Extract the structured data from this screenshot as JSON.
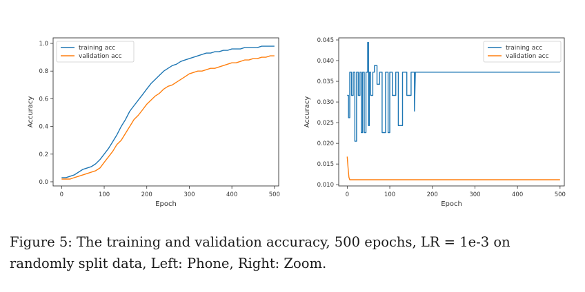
{
  "caption": {
    "line1": "Figure 5:  The training and validation accuracy, 500 epochs, LR = 1e-3 on",
    "line2": "randomly split data, Left: Phone, Right: Zoom."
  },
  "colors": {
    "training": "#1f77b4",
    "validation": "#ff7f0e",
    "axis": "#333333"
  },
  "chart_data": [
    {
      "type": "line",
      "title": "",
      "xlabel": "Epoch",
      "ylabel": "Accuracy",
      "xlim": [
        -20,
        510
      ],
      "ylim": [
        -0.03,
        1.04
      ],
      "xticks": [
        0,
        100,
        200,
        300,
        400,
        500
      ],
      "yticks": [
        0.0,
        0.2,
        0.4,
        0.6,
        0.8,
        1.0
      ],
      "ytick_labels": [
        "0.0",
        "0.2",
        "0.4",
        "0.6",
        "0.8",
        "1.0"
      ],
      "legend_position": "top-left",
      "grid": false,
      "series": [
        {
          "name": "training acc",
          "x": [
            0,
            10,
            20,
            30,
            40,
            50,
            60,
            70,
            80,
            90,
            100,
            110,
            120,
            130,
            140,
            150,
            160,
            170,
            180,
            190,
            200,
            210,
            220,
            230,
            240,
            250,
            260,
            270,
            280,
            290,
            300,
            310,
            320,
            330,
            340,
            350,
            360,
            370,
            380,
            390,
            400,
            410,
            420,
            430,
            440,
            450,
            460,
            470,
            480,
            490,
            500
          ],
          "values": [
            0.03,
            0.03,
            0.04,
            0.05,
            0.07,
            0.09,
            0.1,
            0.11,
            0.13,
            0.16,
            0.2,
            0.24,
            0.29,
            0.34,
            0.4,
            0.45,
            0.51,
            0.55,
            0.59,
            0.63,
            0.67,
            0.71,
            0.74,
            0.77,
            0.8,
            0.82,
            0.84,
            0.85,
            0.87,
            0.88,
            0.89,
            0.9,
            0.91,
            0.92,
            0.93,
            0.93,
            0.94,
            0.94,
            0.95,
            0.95,
            0.96,
            0.96,
            0.96,
            0.97,
            0.97,
            0.97,
            0.97,
            0.98,
            0.98,
            0.98,
            0.98
          ]
        },
        {
          "name": "validation acc",
          "x": [
            0,
            10,
            20,
            30,
            40,
            50,
            60,
            70,
            80,
            90,
            100,
            110,
            120,
            130,
            140,
            150,
            160,
            170,
            180,
            190,
            200,
            210,
            220,
            230,
            240,
            250,
            260,
            270,
            280,
            290,
            300,
            310,
            320,
            330,
            340,
            350,
            360,
            370,
            380,
            390,
            400,
            410,
            420,
            430,
            440,
            450,
            460,
            470,
            480,
            490,
            500
          ],
          "values": [
            0.02,
            0.02,
            0.02,
            0.03,
            0.04,
            0.05,
            0.06,
            0.07,
            0.08,
            0.1,
            0.14,
            0.18,
            0.22,
            0.27,
            0.3,
            0.35,
            0.4,
            0.45,
            0.48,
            0.52,
            0.56,
            0.59,
            0.62,
            0.64,
            0.67,
            0.69,
            0.7,
            0.72,
            0.74,
            0.76,
            0.78,
            0.79,
            0.8,
            0.8,
            0.81,
            0.82,
            0.82,
            0.83,
            0.84,
            0.85,
            0.86,
            0.86,
            0.87,
            0.88,
            0.88,
            0.89,
            0.89,
            0.9,
            0.9,
            0.91,
            0.91
          ]
        }
      ]
    },
    {
      "type": "line",
      "title": "",
      "xlabel": "Epoch",
      "ylabel": "Accuracy",
      "xlim": [
        -20,
        510
      ],
      "ylim": [
        0.0097,
        0.0455
      ],
      "xticks": [
        0,
        100,
        200,
        300,
        400,
        500
      ],
      "yticks": [
        0.01,
        0.015,
        0.02,
        0.025,
        0.03,
        0.035,
        0.04,
        0.045
      ],
      "ytick_labels": [
        "0.010",
        "0.015",
        "0.020",
        "0.025",
        "0.030",
        "0.035",
        "0.040",
        "0.045"
      ],
      "legend_position": "top-right",
      "grid": false,
      "series": [
        {
          "name": "training acc",
          "x": [
            0,
            3,
            3,
            6,
            6,
            10,
            10,
            14,
            14,
            18,
            18,
            22,
            22,
            26,
            26,
            30,
            30,
            33,
            33,
            36,
            36,
            40,
            40,
            44,
            44,
            48,
            48,
            50,
            50,
            52,
            52,
            55,
            55,
            60,
            60,
            64,
            64,
            70,
            70,
            76,
            76,
            82,
            82,
            90,
            90,
            96,
            96,
            100,
            100,
            106,
            106,
            114,
            114,
            120,
            120,
            130,
            130,
            140,
            140,
            150,
            150,
            158,
            158,
            160,
            500
          ],
          "values": [
            0.0316,
            0.0316,
            0.0262,
            0.0262,
            0.0372,
            0.0372,
            0.0316,
            0.0316,
            0.0372,
            0.0372,
            0.0205,
            0.0205,
            0.0372,
            0.0372,
            0.0316,
            0.0316,
            0.0372,
            0.0372,
            0.0226,
            0.0226,
            0.0372,
            0.0372,
            0.0226,
            0.0226,
            0.0372,
            0.0372,
            0.0444,
            0.0444,
            0.0243,
            0.0243,
            0.0372,
            0.0372,
            0.0316,
            0.0316,
            0.0372,
            0.0372,
            0.0388,
            0.0388,
            0.0343,
            0.0343,
            0.0372,
            0.0372,
            0.0226,
            0.0226,
            0.0372,
            0.0372,
            0.0226,
            0.0226,
            0.0372,
            0.0372,
            0.0316,
            0.0316,
            0.0372,
            0.0372,
            0.0243,
            0.0243,
            0.0372,
            0.0372,
            0.0316,
            0.0316,
            0.0372,
            0.0372,
            0.0278,
            0.0372,
            0.0372
          ]
        },
        {
          "name": "validation acc",
          "x": [
            0,
            2,
            4,
            6,
            8,
            500
          ],
          "values": [
            0.0168,
            0.014,
            0.0118,
            0.0112,
            0.0112,
            0.0112
          ]
        }
      ]
    }
  ]
}
